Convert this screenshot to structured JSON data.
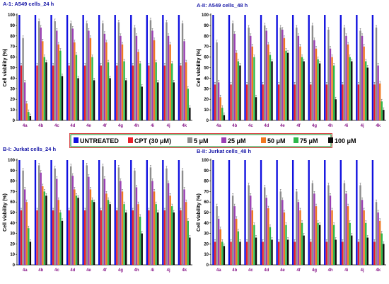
{
  "chart_data": {
    "type": "bar",
    "legend": {
      "placement": "center",
      "entries": [
        {
          "label": "UNTREATED",
          "color": "#1010e0"
        },
        {
          "label": "CPT (30 μM)",
          "color": "#e8202a"
        },
        {
          "label": "5 μM",
          "color": "#8c8c8c"
        },
        {
          "label": "25 μM",
          "color": "#9a3fb4"
        },
        {
          "label": "50 μM",
          "color": "#f07820"
        },
        {
          "label": "75 μM",
          "color": "#2db84a"
        },
        {
          "label": "100 μM",
          "color": "#0a0a0a"
        }
      ]
    },
    "panels": [
      {
        "title": "A-1: A549 cells_24 h",
        "ylabel": "Cell viability (%)",
        "yticks": [
          0,
          10,
          20,
          30,
          40,
          50,
          60,
          70,
          80,
          90,
          100
        ],
        "ylim": [
          0,
          100
        ],
        "categories": [
          "4a",
          "4b",
          "4c",
          "4d",
          "4e",
          "4f",
          "4g",
          "4h",
          "4i",
          "4j",
          "4k"
        ],
        "series": [
          {
            "name": "UNTREATED",
            "values": [
              100,
              100,
              100,
              100,
              100,
              100,
              100,
              100,
              100,
              100,
              100
            ]
          },
          {
            "name": "CPT (30 μM)",
            "values": [
              52,
              52,
              52,
              52,
              52,
              52,
              52,
              52,
              52,
              52,
              52
            ]
          },
          {
            "name": "5 μM",
            "values": [
              78,
              94,
              94,
              92,
              92,
              92,
              93,
              88,
              95,
              93,
              92
            ]
          },
          {
            "name": "25 μM",
            "values": [
              36,
              88,
              85,
              87,
              85,
              82,
              80,
              80,
              85,
              80,
              75
            ]
          },
          {
            "name": "50 μM",
            "values": [
              16,
              75,
              72,
              74,
              78,
              74,
              72,
              65,
              76,
              72,
              55
            ]
          },
          {
            "name": "75 μM",
            "values": [
              8,
              60,
              66,
              62,
              60,
              55,
              56,
              54,
              55,
              54,
              30
            ]
          },
          {
            "name": "100 μM",
            "values": [
              4,
              55,
              42,
              40,
              38,
              40,
              38,
              32,
              36,
              36,
              12
            ]
          }
        ]
      },
      {
        "title": "A-II: A549 cells_48 h",
        "ylabel": "Cell viability (%)",
        "yticks": [
          0,
          10,
          20,
          30,
          40,
          50,
          60,
          70,
          80,
          90,
          100
        ],
        "ylim": [
          0,
          100
        ],
        "categories": [
          "4a",
          "4b",
          "4c",
          "4d",
          "4e",
          "4f",
          "4g",
          "4h",
          "4i",
          "4j",
          "4k"
        ],
        "series": [
          {
            "name": "UNTREATED",
            "values": [
              100,
              100,
              100,
              100,
              100,
              100,
              100,
              100,
              100,
              100,
              100
            ]
          },
          {
            "name": "CPT (30 μM)",
            "values": [
              34,
              34,
              34,
              34,
              34,
              34,
              34,
              34,
              34,
              34,
              34
            ]
          },
          {
            "name": "5 μM",
            "values": [
              74,
              92,
              88,
              90,
              88,
              88,
              90,
              86,
              88,
              85,
              88
            ]
          },
          {
            "name": "25 μM",
            "values": [
              36,
              82,
              80,
              85,
              86,
              80,
              76,
              68,
              80,
              80,
              52
            ]
          },
          {
            "name": "50 μM",
            "values": [
              22,
              64,
              70,
              72,
              78,
              70,
              68,
              60,
              72,
              70,
              35
            ]
          },
          {
            "name": "75 μM",
            "values": [
              12,
              56,
              60,
              62,
              66,
              60,
              58,
              52,
              60,
              56,
              18
            ]
          },
          {
            "name": "100 μM",
            "values": [
              5,
              52,
              22,
              56,
              64,
              56,
              54,
              20,
              56,
              50,
              10
            ]
          }
        ]
      },
      {
        "title": "B-I: Jurkat cells_24 h",
        "ylabel": "Cell viability (%)",
        "yticks": [
          0,
          10,
          20,
          30,
          40,
          50,
          60,
          70,
          80,
          90,
          100
        ],
        "ylim": [
          0,
          100
        ],
        "categories": [
          "4a",
          "4b",
          "4c",
          "4d",
          "4e",
          "4f",
          "4g",
          "4h",
          "4i",
          "4j",
          "4k"
        ],
        "series": [
          {
            "name": "UNTREATED",
            "values": [
              100,
              100,
              100,
              100,
              100,
              100,
              100,
              100,
              100,
              100,
              100
            ]
          },
          {
            "name": "CPT (30 μM)",
            "values": [
              52,
              52,
              52,
              52,
              52,
              52,
              52,
              52,
              52,
              52,
              52
            ]
          },
          {
            "name": "5 μM",
            "values": [
              90,
              95,
              92,
              94,
              95,
              94,
              93,
              90,
              93,
              92,
              90
            ]
          },
          {
            "name": "25 μM",
            "values": [
              72,
              88,
              82,
              85,
              84,
              82,
              80,
              74,
              80,
              78,
              72
            ]
          },
          {
            "name": "50 μM",
            "values": [
              60,
              75,
              62,
              72,
              72,
              68,
              70,
              58,
              70,
              66,
              60
            ]
          },
          {
            "name": "75 μM",
            "values": [
              35,
              70,
              50,
              66,
              62,
              62,
              58,
              46,
              58,
              56,
              42
            ]
          },
          {
            "name": "100 μM",
            "values": [
              22,
              66,
              42,
              64,
              60,
              58,
              50,
              30,
              50,
              50,
              26
            ]
          }
        ]
      },
      {
        "title": "B-II: Jurkat cells_48 h",
        "ylabel": "Cell viability (%)",
        "yticks": [
          0,
          10,
          20,
          30,
          40,
          50,
          60,
          70,
          80,
          90,
          100
        ],
        "ylim": [
          0,
          100
        ],
        "categories": [
          "4a",
          "4b",
          "4c",
          "4d",
          "4e",
          "4f",
          "4g",
          "4h",
          "4i",
          "4j",
          "4k"
        ],
        "series": [
          {
            "name": "UNTREATED",
            "values": [
              100,
              100,
              100,
              100,
              100,
              100,
              100,
              100,
              100,
              100,
              100
            ]
          },
          {
            "name": "CPT (30 μM)",
            "values": [
              22,
              22,
              22,
              22,
              22,
              22,
              22,
              22,
              22,
              22,
              22
            ]
          },
          {
            "name": "5 μM",
            "values": [
              56,
              66,
              76,
              74,
              70,
              70,
              78,
              76,
              78,
              76,
              60
            ]
          },
          {
            "name": "25 μM",
            "values": [
              44,
              56,
              66,
              64,
              62,
              60,
              68,
              66,
              68,
              62,
              50
            ]
          },
          {
            "name": "50 μM",
            "values": [
              34,
              44,
              52,
              54,
              50,
              52,
              56,
              52,
              56,
              52,
              42
            ]
          },
          {
            "name": "75 μM",
            "values": [
              22,
              32,
              38,
              36,
              38,
              40,
              40,
              38,
              40,
              40,
              30
            ]
          },
          {
            "name": "100 μM",
            "values": [
              18,
              22,
              26,
              24,
              24,
              28,
              38,
              24,
              28,
              26,
              20
            ]
          }
        ]
      }
    ]
  }
}
